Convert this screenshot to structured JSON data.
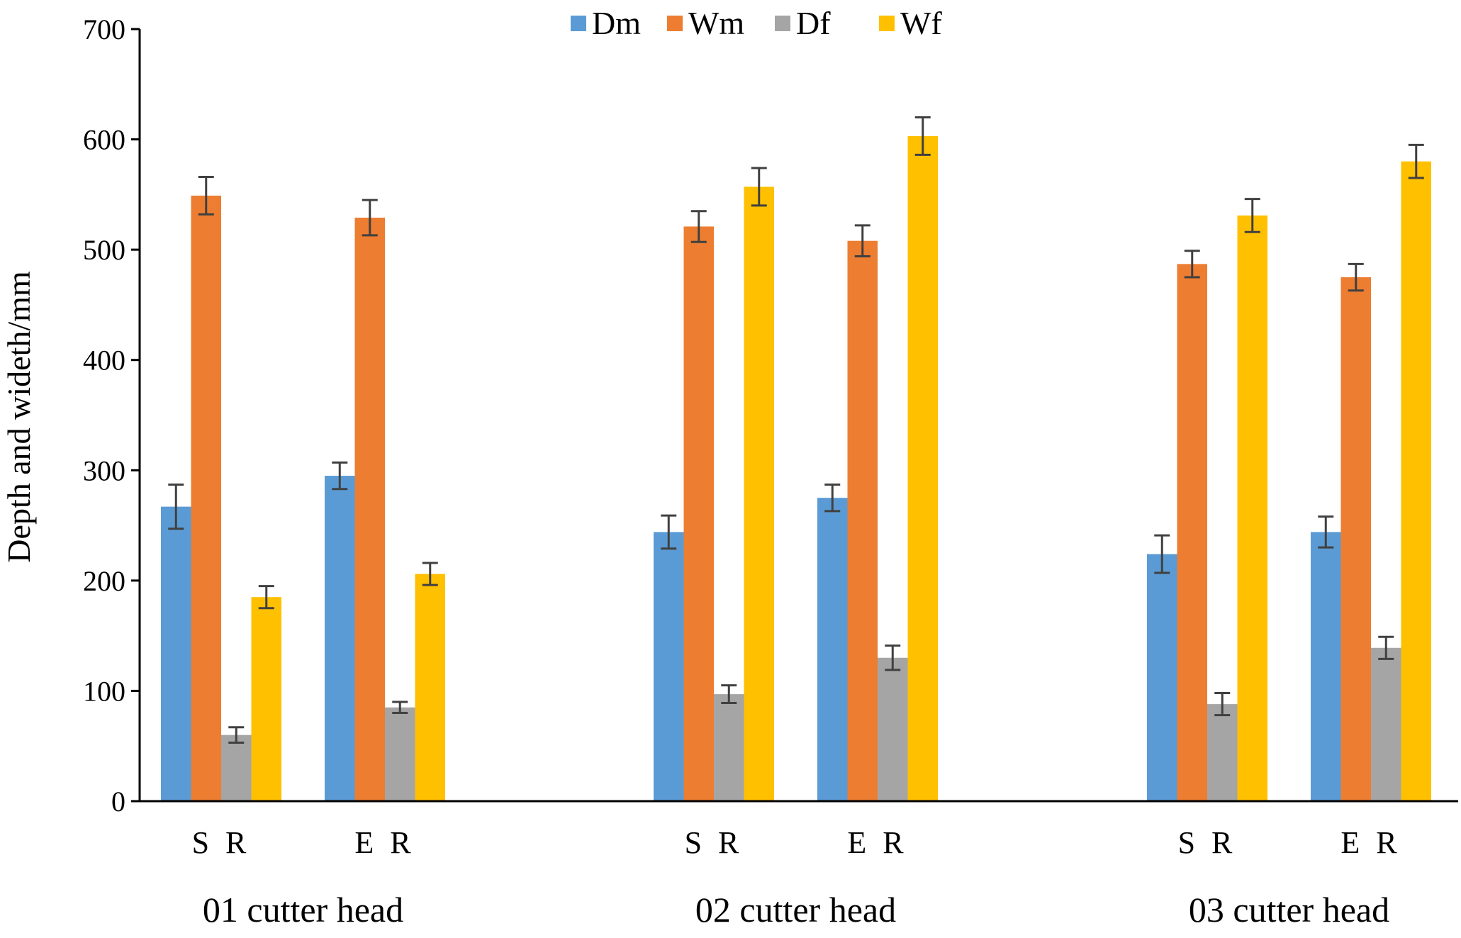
{
  "chart_data": {
    "type": "bar",
    "title": "",
    "ylabel": "Depth and wideth/mm",
    "xlabel": "",
    "ylim": [
      0,
      700
    ],
    "yticks": [
      0,
      100,
      200,
      300,
      400,
      500,
      600,
      700
    ],
    "legend_position": "top-center",
    "groups": [
      {
        "label": "01 cutter head",
        "categories": [
          "S R",
          "E R"
        ]
      },
      {
        "label": "02 cutter head",
        "categories": [
          "S R",
          "E R"
        ]
      },
      {
        "label": "03 cutter head",
        "categories": [
          "S R",
          "E R"
        ]
      }
    ],
    "categories": [
      "01 cutter head S R",
      "01 cutter head E R",
      "02 cutter head S R",
      "02 cutter head E R",
      "03 cutter head S R",
      "03 cutter head E R"
    ],
    "series": [
      {
        "name": "Dm",
        "color": "#5b9bd5",
        "values": [
          267,
          295,
          244,
          275,
          224,
          244
        ],
        "errors": [
          20,
          12,
          15,
          12,
          17,
          14
        ]
      },
      {
        "name": "Wm",
        "color": "#ed7d31",
        "values": [
          549,
          529,
          521,
          508,
          487,
          475
        ],
        "errors": [
          17,
          16,
          14,
          14,
          12,
          12
        ]
      },
      {
        "name": "Df",
        "color": "#a5a5a5",
        "values": [
          60,
          85,
          97,
          130,
          88,
          139
        ],
        "errors": [
          7,
          5,
          8,
          11,
          10,
          10
        ]
      },
      {
        "name": "Wf",
        "color": "#ffc000",
        "values": [
          185,
          206,
          557,
          603,
          531,
          580
        ],
        "errors": [
          10,
          10,
          17,
          17,
          15,
          15
        ]
      }
    ]
  }
}
